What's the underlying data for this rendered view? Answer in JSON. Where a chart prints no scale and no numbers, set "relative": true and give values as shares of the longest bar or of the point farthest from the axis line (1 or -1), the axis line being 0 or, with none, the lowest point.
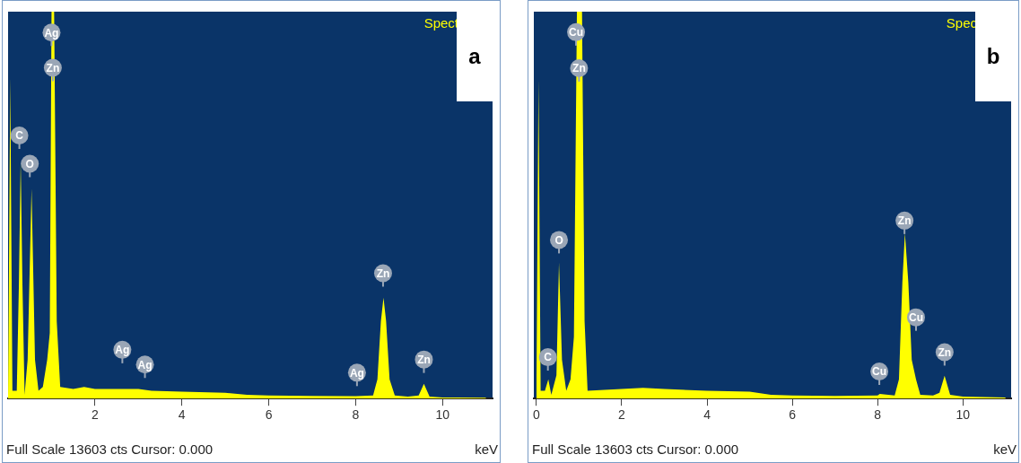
{
  "chart_data": [
    {
      "type": "area",
      "title": "a",
      "xlabel": "keV",
      "relative": true,
      "xlim": [
        0,
        11.15
      ],
      "xticks": [
        2,
        4,
        6,
        8,
        10
      ],
      "series": [
        {
          "color": "#ffff00",
          "x": [
            0,
            0.05,
            0.1,
            0.2,
            0.25,
            0.29,
            0.33,
            0.38,
            0.45,
            0.54,
            0.62,
            0.7,
            0.8,
            0.9,
            0.96,
            1.0,
            1.06,
            1.12,
            1.2,
            1.5,
            1.75,
            2.0,
            2.5,
            3.0,
            3.3,
            4.0,
            5.0,
            5.5,
            6.0,
            7.0,
            8.0,
            8.4,
            8.5,
            8.58,
            8.64,
            8.7,
            8.78,
            8.9,
            9.2,
            9.45,
            9.57,
            9.7,
            10,
            11
          ],
          "values": [
            0,
            0.83,
            0.02,
            0.02,
            0.3,
            0.615,
            0.3,
            0.01,
            0.1,
            0.543,
            0.1,
            0.02,
            0.03,
            0.1,
            0.17,
            1,
            1,
            0.2,
            0.03,
            0.025,
            0.03,
            0.025,
            0.025,
            0.025,
            0.02,
            0.018,
            0.015,
            0.01,
            0.008,
            0.007,
            0.006,
            0.008,
            0.05,
            0.2,
            0.261,
            0.2,
            0.05,
            0.008,
            0.005,
            0.008,
            0.038,
            0.005,
            0.003,
            0.002
          ]
        }
      ],
      "annotations": [
        "Spect",
        "Full Scale 13603 cts Cursor: 0.000",
        {
          "text": "Ag",
          "x": 1.0,
          "y": 0.946
        },
        {
          "text": "Zn",
          "x": 1.03,
          "y": 0.855
        },
        {
          "text": "C",
          "x": 0.26,
          "y": 0.68
        },
        {
          "text": "O",
          "x": 0.5,
          "y": 0.607
        },
        {
          "text": "Zn",
          "x": 8.63,
          "y": 0.324
        },
        {
          "text": "Ag",
          "x": 2.63,
          "y": 0.126
        },
        {
          "text": "Ag",
          "x": 3.15,
          "y": 0.088
        },
        {
          "text": "Ag",
          "x": 8.03,
          "y": 0.067
        },
        {
          "text": "Zn",
          "x": 9.57,
          "y": 0.101
        }
      ]
    },
    {
      "type": "area",
      "title": "b",
      "xlabel": "keV",
      "relative": true,
      "xlim": [
        -0.06,
        11.13
      ],
      "xticks": [
        0,
        2,
        4,
        6,
        8,
        10
      ],
      "series": [
        {
          "color": "#ffff00",
          "x": [
            0,
            0.05,
            0.1,
            0.2,
            0.28,
            0.35,
            0.47,
            0.53,
            0.6,
            0.7,
            0.8,
            0.88,
            0.95,
            1.07,
            1.13,
            1.2,
            1.5,
            2.0,
            2.5,
            3.0,
            4.0,
            5.0,
            5.5,
            6.0,
            7.0,
            8.0,
            8.05,
            8.4,
            8.5,
            8.58,
            8.64,
            8.72,
            8.8,
            8.9,
            9.0,
            9.3,
            9.45,
            9.57,
            9.7,
            10,
            11
          ],
          "values": [
            0,
            0.826,
            0.02,
            0.02,
            0.05,
            0.01,
            0.06,
            0.352,
            0.1,
            0.02,
            0.05,
            0.16,
            1,
            1,
            0.2,
            0.02,
            0.022,
            0.025,
            0.028,
            0.025,
            0.02,
            0.018,
            0.01,
            0.008,
            0.007,
            0.008,
            0.012,
            0.008,
            0.05,
            0.3,
            0.428,
            0.3,
            0.1,
            0.05,
            0.01,
            0.008,
            0.015,
            0.059,
            0.01,
            0.005,
            0.003
          ]
        }
      ],
      "annotations": [
        "Spec",
        "Full Scale 13603 cts Cursor: 0.000",
        {
          "text": "Cu",
          "x": 0.93,
          "y": 0.947
        },
        {
          "text": "Zn",
          "x": 1.0,
          "y": 0.854
        },
        {
          "text": "O",
          "x": 0.53,
          "y": 0.41
        },
        {
          "text": "C",
          "x": 0.27,
          "y": 0.107
        },
        {
          "text": "Zn",
          "x": 8.63,
          "y": 0.46
        },
        {
          "text": "Cu",
          "x": 8.9,
          "y": 0.21
        },
        {
          "text": "Cu",
          "x": 8.04,
          "y": 0.07
        },
        {
          "text": "Zn",
          "x": 9.57,
          "y": 0.12
        }
      ]
    }
  ]
}
